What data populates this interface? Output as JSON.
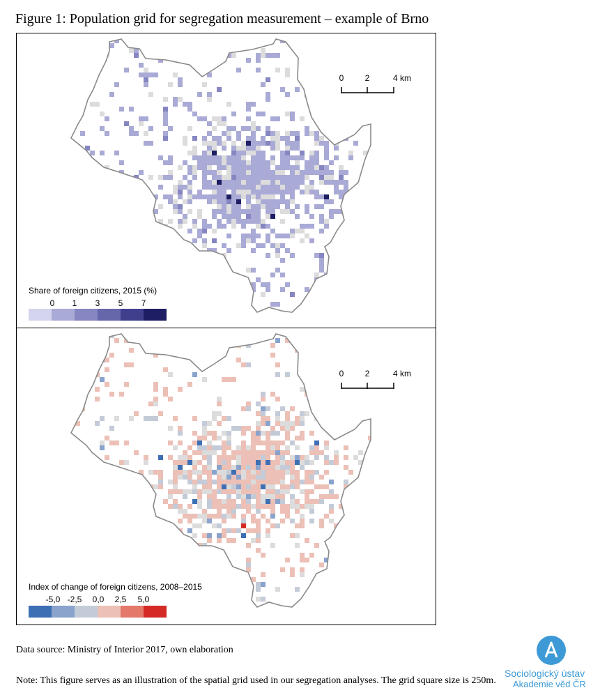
{
  "figure_title": "Figure 1: Population grid for segregation measurement – example of Brno",
  "panels": {
    "top": {
      "legend_title": "Share of foreign citizens, 2015 (%)",
      "legend_labels": [
        "0",
        "1",
        "3",
        "5",
        "7"
      ],
      "legend_colors": [
        "#d4d4ee",
        "#aaaad6",
        "#8686c2",
        "#6666ab",
        "#3f3f8e",
        "#1e1e64"
      ],
      "scale": {
        "labels": [
          "0",
          "2",
          "4 km"
        ]
      }
    },
    "bottom": {
      "legend_title": "Index of change of foreign citizens, 2008–2015",
      "legend_labels": [
        "-5,0",
        "-2,5",
        "0,0",
        "2,5",
        "5,0"
      ],
      "legend_colors": [
        "#3d6fb4",
        "#8aa3cd",
        "#c4cbd8",
        "#ecc0b6",
        "#e4786a",
        "#d42a25"
      ],
      "scale": {
        "labels": [
          "0",
          "2",
          "4 km"
        ]
      }
    }
  },
  "footnotes": {
    "source": "Data source: Ministry of Interior 2017, own elaboration",
    "note": "Note: This figure serves as an illustration of the spatial grid used in our segregation analyses. The grid square size is 250m."
  },
  "logo": {
    "line1": "Sociologický ústav",
    "line2": "Akademie věd ČR"
  }
}
